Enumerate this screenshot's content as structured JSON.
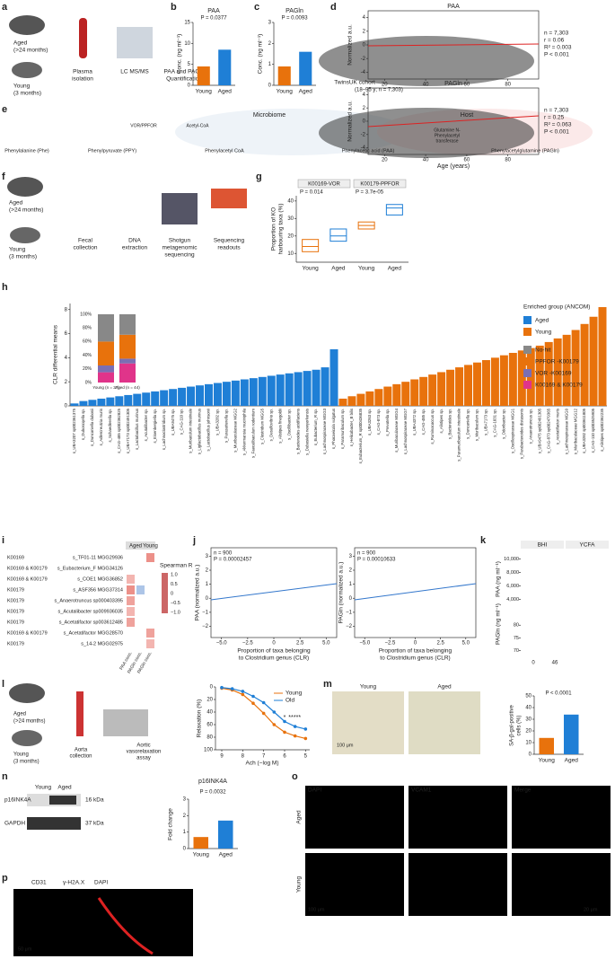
{
  "panel_letters": [
    "a",
    "b",
    "c",
    "d",
    "e",
    "f",
    "g",
    "h",
    "i",
    "j",
    "k",
    "l",
    "m",
    "n",
    "o",
    "p"
  ],
  "a": {
    "aged": "Aged",
    "aged_age": "(>24 months)",
    "young": "Young",
    "young_age": "(3 months)",
    "plasma": [
      "Plasma",
      "isolation"
    ],
    "lcms": "LC MS/MS",
    "quant": [
      "PAA and PAGln",
      "Quantification"
    ]
  },
  "b": {
    "title": "PAA",
    "p": "P = 0.0377",
    "ylabel": "Conc. (ng ml⁻¹)",
    "categories": [
      "Young",
      "Aged"
    ],
    "values": [
      4.5,
      8.5
    ],
    "colors": [
      "#e8720c",
      "#1f7fd6"
    ],
    "ylim": [
      0,
      15
    ],
    "yticks": [
      0,
      5,
      10,
      15
    ]
  },
  "c": {
    "title": "PAGln",
    "p": "P = 0.0093",
    "ylabel": "Conc. (ng ml⁻¹)",
    "categories": [
      "Young",
      "Aged"
    ],
    "values": [
      0.9,
      1.6
    ],
    "colors": [
      "#e8720c",
      "#1f7fd6"
    ],
    "ylim": [
      0,
      3
    ],
    "yticks": [
      0,
      1,
      2,
      3
    ]
  },
  "d": {
    "cohort": [
      "TwinsUK cohort",
      "(18–95 y; n = 7,303)"
    ],
    "xlabel": "Age (years)",
    "xticks": [
      20,
      40,
      60,
      80
    ],
    "xlim": [
      12,
      95
    ],
    "plots": [
      {
        "title": "PAA",
        "ylabel": "Normalized a.u.",
        "stats": [
          "n = 7,303",
          "r = 0.06",
          "R² = 0.003",
          "P < 0.001"
        ],
        "yticks": [
          -4,
          -2,
          0,
          2,
          4
        ],
        "ylim": [
          -5,
          5
        ]
      },
      {
        "title": "PAGln",
        "ylabel": "Normalized a.u.",
        "stats": [
          "n = 7,303",
          "r = 0.25",
          "R² = 0.063",
          "P < 0.001"
        ],
        "yticks": [
          -4,
          -2,
          0,
          2,
          4
        ],
        "ylim": [
          -5,
          5
        ]
      }
    ]
  },
  "e": {
    "compounds": [
      "Phenylalanine (Phe)",
      "Phenylpyruvate (PPY)",
      "Phenylacetyl CoA",
      "Phenylacetic acid (PAA)",
      "Phenylacetylglutamine (PAGln)"
    ],
    "microbiome": "Microbiome",
    "host": "Host",
    "enzyme": "VOR/PPFOR",
    "cofactor": "Acetyl-CoA",
    "transferase": [
      "Glutamine N-",
      "Phenylacetyl",
      "transferase"
    ]
  },
  "f": {
    "aged": "Aged",
    "aged_age": "(>24 months)",
    "young": "Young",
    "young_age": "(3 months)",
    "steps": [
      [
        "Fecal",
        "collection"
      ],
      [
        "DNA",
        "extraction"
      ],
      [
        "Shotgun",
        "metagenomic",
        "sequencing"
      ],
      [
        "Sequencing",
        "readouts"
      ]
    ]
  },
  "g": {
    "groups": [
      "K00169-VOR",
      "K00179-PPFOR"
    ],
    "p": [
      "P = 0.014",
      "P = 3.7e-05"
    ],
    "ylabel": [
      "Proportion of KO",
      "harbouring taxa (%)"
    ],
    "categories": [
      "Young",
      "Aged",
      "Young",
      "Aged"
    ],
    "colors": [
      "#e8720c",
      "#1f7fd6",
      "#e8720c",
      "#1f7fd6"
    ],
    "q1": [
      11,
      17,
      24,
      32
    ],
    "median": [
      14,
      20,
      26,
      36
    ],
    "q3": [
      18,
      24,
      28,
      38
    ],
    "ylim": [
      5,
      43
    ],
    "yticks": [
      10,
      20,
      30,
      40
    ]
  },
  "h": {
    "ylabel": "CLR differential means",
    "ylim": [
      0,
      8.5
    ],
    "yticks": [
      0,
      2,
      4,
      6,
      8
    ],
    "legend_title": "Enriched group (ANCOM)",
    "series": [
      {
        "name": "Aged",
        "color": "#1f7fd6",
        "categories": [
          "s_UBA3207 sp002361375",
          "s_Duboscqella sp.",
          "s_Duncaniella dubosii",
          "s_Adlercreutzia muris",
          "s_Schaedlerella sp.",
          "s_CAG-485 sp002362825",
          "s_UBA7173 sp002491305",
          "s_Lactobacillus murinus",
          "s_Acutalibacter sp.",
          "s_Eisenbergiella sp.",
          "s_Lachnoclostridium sp.",
          "s_UBA9475 sp.",
          "s_CAG-110 sp.",
          "s_Muribaculum intestinale",
          "s_Ligilactobacillus murinus",
          "s_Lactobacillus johnsonii",
          "s_UBA3282 sp.",
          "s_Parasutterella sp.",
          "s_Muribaculaceae MGG2",
          "s_Akkermansia muciniphila",
          "s_Faecalibaculum rodentium",
          "s_Clostridium MGG5",
          "s_Desulfovibrio sp.",
          "s_Alistipes finegoldii",
          "s_Oscillibacter sp.",
          "s_Bacteroides acidifaciens",
          "s_Dubosiella newyorkensis",
          "s_Eubacterium_R sp.",
          "s_Lachnospiraceae MGG3",
          "s_Phocaeicola vulgatus"
        ],
        "values": [
          0.2,
          0.4,
          0.5,
          0.6,
          0.7,
          0.8,
          0.9,
          1.0,
          1.1,
          1.2,
          1.3,
          1.4,
          1.5,
          1.6,
          1.7,
          1.8,
          1.9,
          2.0,
          2.1,
          2.2,
          2.3,
          2.4,
          2.5,
          2.6,
          2.7,
          2.8,
          2.9,
          3.0,
          3.2,
          4.7
        ]
      },
      {
        "name": "Young",
        "color": "#e8720c",
        "categories": [
          "s_Paramuribaculum sp.",
          "s_Helicobacter_B bilis",
          "s_Eubacterium_R sp000436835",
          "s_UBA3263 sp.",
          "s_CAG-873 sp.",
          "s_Prevotella sp.",
          "s_Muribaculaceae MGG4",
          "s_Lachnospiraceae MGG7",
          "s_UBA4372 sp.",
          "s_CAG-485 sp.",
          "s_Ruminococcus sp.",
          "s_Alistipes sp.",
          "s_Bacteroides sp.",
          "s_Paramuribaculum intestinale",
          "s_Duncaniella sp.",
          "s_Muribaculum sp.",
          "s_UBA7173 sp.",
          "s_CAG-1031 sp.",
          "s_Odoribacter sp.",
          "s_Oscillospiraceae MGG1",
          "s_Parabacteroides distasonis",
          "s_Anaerotruncus sp.",
          "s_UBA9475 sp002491305",
          "s_CAG-873 sp002479365",
          "s_Acetatifactor muris",
          "s_Lachnospiraceae MGG9",
          "s_Muribaculaceae MGG12",
          "s_UBA3282 sp003611805",
          "s_CAG-110 sp003525905",
          "s_Alistipes sp002362235"
        ],
        "values": [
          0.6,
          0.8,
          1.0,
          1.2,
          1.4,
          1.6,
          1.8,
          2.0,
          2.2,
          2.4,
          2.6,
          2.8,
          3.0,
          3.2,
          3.4,
          3.6,
          3.8,
          4.0,
          4.2,
          4.4,
          4.6,
          4.8,
          5.0,
          5.3,
          5.6,
          5.9,
          6.3,
          6.8,
          7.4,
          8.2
        ]
      }
    ],
    "hits": [
      {
        "name": "No-hit",
        "color": "#888888"
      },
      {
        "name": "PPFOR -K00179",
        "color": "#e8720c"
      },
      {
        "name": "VOR -K00169",
        "color": "#7b6fb3"
      },
      {
        "name": "K00169 & K00179",
        "color": "#e0348a"
      }
    ],
    "inset": {
      "categories": [
        "Young (n = 37)",
        "Aged (n = 44)"
      ],
      "yticks": [
        {
          "value": 0,
          "label": "0%"
        },
        {
          "value": 20,
          "label": "20%"
        },
        {
          "value": 40,
          "label": "40%"
        },
        {
          "value": 60,
          "label": "60%"
        },
        {
          "value": 80,
          "label": "80%"
        },
        {
          "value": 100,
          "label": "100%"
        }
      ],
      "segments": [
        [
          40,
          35,
          10,
          15
        ],
        [
          30,
          35,
          7,
          28
        ]
      ]
    }
  },
  "i": {
    "headers": [
      "Aged",
      "Young"
    ],
    "columns": [
      "PAA conc.",
      "PAGln conc.",
      "PAGln conc."
    ],
    "rows": [
      [
        "K00169",
        "s_TF01-11 MGG29936"
      ],
      [
        "K00169 & K00179",
        "s_Eubacterium_F MGG34126"
      ],
      [
        "K00169 & K00179",
        "s_COE1 MGG36852"
      ],
      [
        "K00179",
        "s_ASF356 MGG37314"
      ],
      [
        "K00179",
        "s_Anaerotruncus sp000403395"
      ],
      [
        "K00179",
        "s_Acutalibacter sp009936035"
      ],
      [
        "K00179",
        "s_Acetatifactor sp003612485"
      ],
      [
        "K00169 & K00179",
        "s_Acetatifactor MGG28570"
      ],
      [
        "K00179",
        "s_14-2 MGG02975"
      ]
    ],
    "cells": [
      [
        null,
        null,
        0.6
      ],
      [
        null,
        null,
        null
      ],
      [
        0.4,
        null,
        null
      ],
      [
        0.6,
        -0.5,
        null
      ],
      [
        0.5,
        null,
        null
      ],
      [
        0.4,
        null,
        null
      ],
      [
        0.5,
        null,
        null
      ],
      [
        null,
        null,
        0.5
      ],
      [
        null,
        null,
        0.4
      ]
    ],
    "colorbar_title": "Spearman R",
    "colorbar_ticks": [
      {
        "value": 1,
        "label": "1.0"
      },
      {
        "value": 0.5,
        "label": "0.5"
      },
      {
        "value": 0,
        "label": "0"
      },
      {
        "value": -0.5,
        "label": "−0.5"
      },
      {
        "value": -1,
        "label": "−1.0"
      }
    ]
  },
  "j": {
    "xlabel": [
      "Proportion of taxa belonging",
      "to Clostridium genus (CLR)"
    ],
    "xticks": [
      {
        "value": -5,
        "label": "−5.0"
      },
      {
        "value": -2.5,
        "label": "−2.5"
      },
      {
        "value": 0,
        "label": "0"
      },
      {
        "value": 2.5,
        "label": "2.5"
      },
      {
        "value": 5,
        "label": "5.0"
      }
    ],
    "xlim": [
      -6,
      6
    ],
    "yticks": [
      {
        "value": -2,
        "label": "−2"
      },
      {
        "value": -1,
        "label": "−1"
      },
      0,
      1,
      2,
      3
    ],
    "ylim": [
      -2.8,
      3.6
    ],
    "plots": [
      {
        "ylabel": "PAA (normalized a.u.)",
        "stats": [
          "n = 900",
          "P = 0.00002457"
        ]
      },
      {
        "ylabel": "PAGln (normalized a.u.)",
        "stats": [
          "n = 900",
          "P = 0.00010633"
        ]
      }
    ]
  },
  "k": {
    "headers": [
      "BHI",
      "YCFA"
    ],
    "ylabels": [
      "PAA (ng ml⁻¹)",
      "PAGln (ng ml⁻¹)"
    ],
    "paa_ticks": [
      {
        "value": 10000,
        "label": "10,000"
      },
      {
        "value": 8000,
        "label": "8,000"
      },
      {
        "value": 6000,
        "label": "6,000"
      },
      {
        "value": 4000,
        "label": "4,000"
      }
    ],
    "pagln_ticks": [
      80,
      75,
      70
    ],
    "xticks": [
      0,
      46
    ]
  },
  "l": {
    "ylabel": "Relaxation (%)",
    "xlabel": "Ach (−log M)",
    "x": [
      9,
      8.5,
      8,
      7.5,
      7,
      6.5,
      6,
      5.5,
      5
    ],
    "xlim": [
      9.3,
      4.8
    ],
    "xticks": [
      9,
      8,
      7,
      6,
      5
    ],
    "ylim": [
      0,
      100
    ],
    "yticks": [
      0,
      20,
      40,
      60,
      80,
      100
    ],
    "stars": [
      "*",
      "**",
      "***"
    ],
    "series": [
      {
        "name": "Young",
        "color": "#e8720c",
        "values": [
          2,
          5,
          12,
          26,
          42,
          60,
          72,
          78,
          82
        ]
      },
      {
        "name": "Old",
        "color": "#1f7fd6",
        "values": [
          1,
          3,
          7,
          15,
          25,
          40,
          55,
          63,
          67
        ]
      }
    ],
    "aorta": [
      "Aorta",
      "collection"
    ],
    "assay": [
      "Aortic",
      "vasorelaxation",
      "assay"
    ],
    "aged": "Aged",
    "aged_age": "(>24 months)",
    "young": "Young",
    "young_age": "(3 months)"
  },
  "m": {
    "images": [
      "Young",
      "Aged"
    ],
    "scale": "100 μm",
    "ylabel": [
      "SA-β-gal-positive",
      "cells (%)"
    ],
    "p": "P < 0.0001",
    "categories": [
      "Young",
      "Aged"
    ],
    "values": [
      14,
      34
    ],
    "colors": [
      "#e8720c",
      "#1f7fd6"
    ],
    "ylim": [
      0,
      50
    ],
    "yticks": [
      0,
      10,
      20,
      30,
      40,
      50
    ]
  },
  "n": {
    "lanes": [
      "Young",
      "Aged"
    ],
    "proteins": [
      "p16INK4A",
      "GAPDH"
    ],
    "sizes": [
      "16 kDa",
      "37 kDa"
    ],
    "title": "p16INK4A",
    "p": "P = 0.0032",
    "ylabel": "Fold change",
    "categories": [
      "Young",
      "Aged"
    ],
    "values": [
      0.7,
      1.7
    ],
    "colors": [
      "#e8720c",
      "#1f7fd6"
    ],
    "ylim": [
      0,
      3
    ],
    "yticks": [
      0,
      1,
      2,
      3
    ]
  },
  "o": {
    "channels": [
      "DAPI",
      "VCAM1",
      "Merge"
    ],
    "rows": [
      "Aged",
      "Young"
    ],
    "scales": [
      "100 μm",
      "20 μm"
    ]
  },
  "p": {
    "channels": [
      "CD31",
      "γ-H2A.X",
      "DAPI"
    ],
    "scale": "50 μm"
  }
}
